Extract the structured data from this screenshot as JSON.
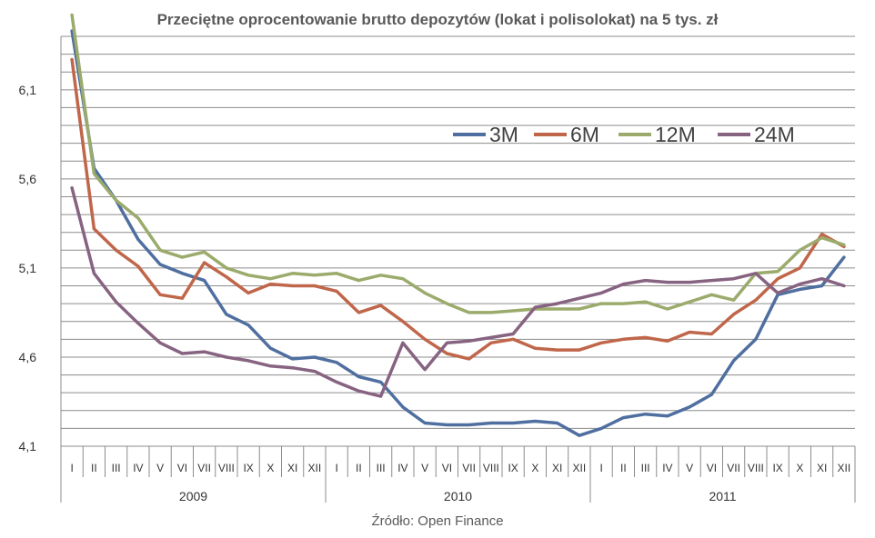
{
  "title": "Przeciętne oprocentowanie brutto depozytów (lokat i polisolokat) na 5 tys. zł",
  "source": "Źródło: Open Finance",
  "chart_data": {
    "type": "line",
    "title": "Przeciętne oprocentowanie brutto depozytów (lokat i polisolokat) na 5 tys. zł",
    "ylim": [
      4.1,
      6.4
    ],
    "yticks": [
      "4,1",
      "4,6",
      "5,1",
      "5,6",
      "6,1"
    ],
    "grid": true,
    "legend_position": "top-right",
    "month_labels": [
      "I",
      "II",
      "III",
      "IV",
      "V",
      "VI",
      "VII",
      "VIII",
      "IX",
      "X",
      "XI",
      "XII"
    ],
    "year_labels": [
      "2009",
      "2010",
      "2011"
    ],
    "series": [
      {
        "name": "3M",
        "color": "#4f6fa0",
        "values": [
          6.43,
          5.66,
          5.48,
          5.26,
          5.12,
          5.07,
          5.03,
          4.84,
          4.78,
          4.65,
          4.59,
          4.6,
          4.57,
          4.49,
          4.46,
          4.32,
          4.23,
          4.22,
          4.22,
          4.23,
          4.23,
          4.24,
          4.23,
          4.16,
          4.2,
          4.26,
          4.28,
          4.27,
          4.32,
          4.39,
          4.58,
          4.7,
          4.95,
          4.98,
          5.0,
          5.16
        ]
      },
      {
        "name": "6M",
        "color": "#c0664a",
        "values": [
          6.27,
          5.32,
          5.2,
          5.11,
          4.95,
          4.93,
          5.13,
          5.05,
          4.96,
          5.01,
          5.0,
          5.0,
          4.97,
          4.85,
          4.89,
          4.8,
          4.7,
          4.62,
          4.59,
          4.68,
          4.7,
          4.65,
          4.64,
          4.64,
          4.68,
          4.7,
          4.71,
          4.69,
          4.74,
          4.73,
          4.84,
          4.92,
          5.04,
          5.1,
          5.29,
          5.22
        ]
      },
      {
        "name": "12M",
        "color": "#9bab6c",
        "values": [
          6.52,
          5.63,
          5.48,
          5.38,
          5.2,
          5.16,
          5.19,
          5.1,
          5.06,
          5.04,
          5.07,
          5.06,
          5.07,
          5.03,
          5.06,
          5.04,
          4.96,
          4.9,
          4.85,
          4.85,
          4.86,
          4.87,
          4.87,
          4.87,
          4.9,
          4.9,
          4.91,
          4.87,
          4.91,
          4.95,
          4.92,
          5.07,
          5.08,
          5.2,
          5.27,
          5.23
        ]
      },
      {
        "name": "24M",
        "color": "#876382",
        "values": [
          5.55,
          5.07,
          4.91,
          4.79,
          4.68,
          4.62,
          4.63,
          4.6,
          4.58,
          4.55,
          4.54,
          4.52,
          4.46,
          4.41,
          4.38,
          4.68,
          4.53,
          4.68,
          4.69,
          4.71,
          4.73,
          4.88,
          4.9,
          4.93,
          4.96,
          5.01,
          5.03,
          5.02,
          5.02,
          5.03,
          5.04,
          5.07,
          4.96,
          5.01,
          5.04,
          5.0
        ]
      }
    ]
  }
}
